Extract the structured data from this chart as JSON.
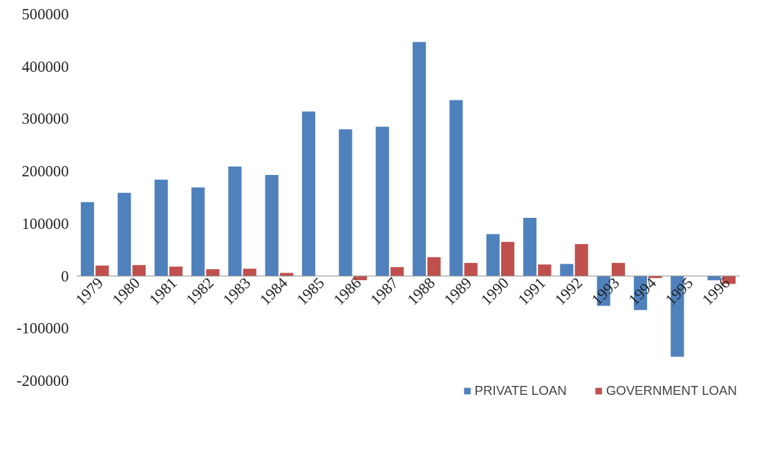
{
  "chart_data": {
    "type": "bar",
    "categories": [
      "1979",
      "1980",
      "1981",
      "1982",
      "1983",
      "1984",
      "1985",
      "1986",
      "1987",
      "1988",
      "1989",
      "1990",
      "1991",
      "1992",
      "1993",
      "1994",
      "1995",
      "1996"
    ],
    "series": [
      {
        "name": "PRIVATE LOAN",
        "color": "#4f81bd",
        "values": [
          141000,
          159000,
          184000,
          169000,
          209000,
          193000,
          314000,
          280000,
          285000,
          447000,
          336000,
          80000,
          111000,
          23000,
          -57000,
          -65000,
          -154000,
          -8000
        ]
      },
      {
        "name": "GOVERNMENT LOAN",
        "color": "#c0504d",
        "values": [
          20000,
          21000,
          18000,
          13000,
          14000,
          6000,
          0,
          -8000,
          17000,
          36000,
          25000,
          65000,
          22000,
          61000,
          25000,
          -4000,
          null,
          -15000
        ]
      }
    ],
    "ylim": [
      -200000,
      500000
    ],
    "yticks": [
      -200000,
      -100000,
      0,
      100000,
      200000,
      300000,
      400000,
      500000
    ],
    "grid": false,
    "legend": "bottom"
  }
}
